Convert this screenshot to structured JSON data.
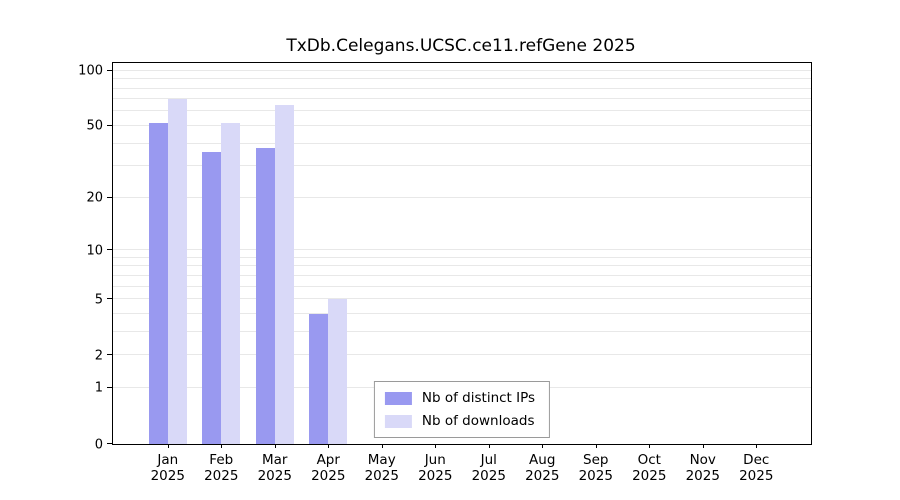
{
  "chart_data": {
    "type": "bar",
    "title": "TxDb.Celegans.UCSC.ce11.refGene 2025",
    "categories": [
      "Jan",
      "Feb",
      "Mar",
      "Apr",
      "May",
      "Jun",
      "Jul",
      "Aug",
      "Sep",
      "Oct",
      "Nov",
      "Dec"
    ],
    "year": "2025",
    "series": [
      {
        "name": "Nb of distinct IPs",
        "color": "#9999f0",
        "values": [
          52,
          36,
          38,
          4,
          0,
          0,
          0,
          0,
          0,
          0,
          0,
          0
        ]
      },
      {
        "name": "Nb of downloads",
        "color": "#d9d9f8",
        "values": [
          70,
          52,
          65,
          5,
          0,
          0,
          0,
          0,
          0,
          0,
          0,
          0
        ]
      }
    ],
    "y_ticks": [
      0,
      1,
      2,
      5,
      10,
      20,
      50,
      100
    ],
    "grid_values": [
      1,
      2,
      3,
      4,
      5,
      6,
      7,
      8,
      9,
      10,
      20,
      30,
      40,
      50,
      60,
      70,
      80,
      90,
      100
    ],
    "y_scale": "log10(v+1)",
    "ylim": [
      0,
      110
    ],
    "grid": "horizontal",
    "legend_position": "bottom-center-inside",
    "xlabel": "",
    "ylabel": ""
  }
}
